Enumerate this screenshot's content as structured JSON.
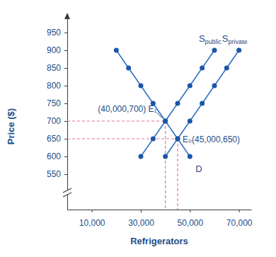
{
  "chart_data": {
    "type": "line",
    "x_label": "Refrigerators",
    "y_label": "Price ($)",
    "xlim": [
      0,
      75000
    ],
    "ylim": [
      450,
      1000
    ],
    "xticks": [
      {
        "value": 10000,
        "label": "10,000"
      },
      {
        "value": 30000,
        "label": "30,000"
      },
      {
        "value": 50000,
        "label": "50,000"
      },
      {
        "value": 70000,
        "label": "70,000"
      }
    ],
    "yticks": [
      550,
      600,
      650,
      700,
      750,
      800,
      850,
      900,
      950
    ],
    "grid": false,
    "series": [
      {
        "name": "D",
        "color": "#2a6dc1",
        "marker": "circle",
        "x": [
          20000,
          25000,
          30000,
          35000,
          40000,
          45000,
          50000
        ],
        "values": [
          900,
          850,
          800,
          750,
          700,
          650,
          600
        ]
      },
      {
        "name": "Spublic",
        "color": "#2a6dc1",
        "marker": "circle",
        "x": [
          30000,
          35000,
          40000,
          45000,
          50000,
          55000,
          60000
        ],
        "values": [
          600,
          650,
          700,
          750,
          800,
          850,
          900
        ]
      },
      {
        "name": "Sprivate",
        "color": "#2a6dc1",
        "marker": "circle",
        "x": [
          40000,
          45000,
          50000,
          55000,
          60000,
          65000,
          70000
        ],
        "values": [
          600,
          650,
          700,
          750,
          800,
          850,
          900
        ]
      }
    ],
    "annotations": [
      {
        "text": "(40,000,700) E₁",
        "x": 40000,
        "y": 700
      },
      {
        "text": "E₀(45,000,650)",
        "x": 45000,
        "y": 650
      }
    ]
  }
}
